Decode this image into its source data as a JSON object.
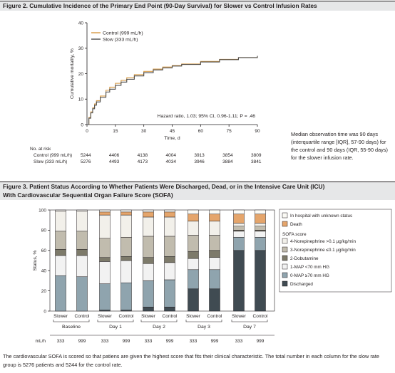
{
  "figure2": {
    "title": "Figure 2. Cumulative Incidence of the Primary End Point (90-Day Survival) for Slower vs Control Infusion Rates",
    "note": "Median observation time was 90 days (interquartile range [IQR], 57-90 days) for the control and 90 days (IQR, 55-90 days) for the slower infusion rate."
  },
  "figure3": {
    "title_line1": "Figure 3. Patient Status According to Whether Patients Were Discharged, Dead, or in the Intensive Care Unit (ICU)",
    "title_line2": "With Cardiovascular Sequential Organ Failure Score (SOFA)",
    "note": "The cardiovascular SOFA is scored so that patiens are given the highest score that fits their clinical characteristic. The total number in each column for the slow rate group is 5276 patients and 5244 for the control rate."
  },
  "risk_table": {
    "title": "No. at risk",
    "rows": [
      {
        "label": "Control (999 mL/h)",
        "values": [
          "5244",
          "4406",
          "4138",
          "4004",
          "3913",
          "3854",
          "3809"
        ]
      },
      {
        "label": "Slow (333 mL/h)",
        "values": [
          "5276",
          "4493",
          "4173",
          "4034",
          "3946",
          "3884",
          "3841"
        ]
      }
    ]
  },
  "colors": {
    "control": "#d79a45",
    "slow": "#4d4d4d",
    "header_bg": "#e6e7e8",
    "discharged": "#404b52",
    "map_ge70": "#8fa4ae",
    "map_lt70": "#f2f2f2",
    "dobutamine": "#7d7a6a",
    "ne_low": "#c1bcae",
    "ne_high": "#f2f0ea",
    "death": "#e5a56b",
    "unknown": "#fbfaf5"
  },
  "chart_data": [
    {
      "type": "line",
      "ylabel": "Cumulative mortality, %",
      "xlabel": "Time, d",
      "xlim": [
        0,
        90
      ],
      "ylim": [
        0,
        40
      ],
      "xticks": [
        "0",
        "15",
        "30",
        "45",
        "60",
        "75",
        "90"
      ],
      "yticks": [
        "0",
        "10",
        "20",
        "30",
        "40"
      ],
      "legend": [
        "Control (999 mL/h)",
        "Slow (333 mL/h)"
      ],
      "legend_position": "top-left",
      "annotation": "Hazard ratio, 1.03; 95% CI, 0.96-1.11; P = .46",
      "series": [
        {
          "name": "Control (999 mL/h)",
          "x": [
            0,
            1,
            2,
            3,
            4,
            5,
            7,
            10,
            12,
            15,
            18,
            21,
            25,
            30,
            35,
            40,
            45,
            50,
            60,
            70,
            80,
            90
          ],
          "y": [
            0,
            2.8,
            5.0,
            6.6,
            8.1,
            9.4,
            11.2,
            13.5,
            14.7,
            16.2,
            17.4,
            18.4,
            19.6,
            20.9,
            21.8,
            22.6,
            23.2,
            23.8,
            24.8,
            25.6,
            26.3,
            26.9
          ]
        },
        {
          "name": "Slow (333 mL/h)",
          "x": [
            0,
            1,
            2,
            3,
            4,
            5,
            7,
            10,
            12,
            15,
            18,
            21,
            25,
            30,
            35,
            40,
            45,
            50,
            60,
            70,
            80,
            90
          ],
          "y": [
            0,
            2.5,
            4.6,
            6.2,
            7.6,
            8.9,
            10.7,
            12.8,
            13.9,
            15.4,
            16.7,
            17.8,
            19.1,
            20.4,
            21.5,
            22.3,
            23.0,
            23.6,
            24.6,
            25.5,
            26.3,
            27.0
          ]
        }
      ]
    },
    {
      "type": "bar",
      "stacked": true,
      "ylabel": "Status, %",
      "ylim": [
        0,
        100
      ],
      "yticks": [
        "0",
        "20",
        "40",
        "60",
        "80",
        "100"
      ],
      "groups": [
        "Baseline",
        "Day 1",
        "Day 2",
        "Day 3",
        "Day 7"
      ],
      "bars": [
        "Slower",
        "Control"
      ],
      "n_label": "mL/h",
      "n_values": [
        "333",
        "999"
      ],
      "legend_position": "right",
      "legend": {
        "top_items": [
          "In hospital with unknown status",
          "Death"
        ],
        "sofa_title": "SOFA score",
        "sofa_items": [
          "4-Norepinephrine >0.1 µg/kg/min",
          "3-Norepinephrine ≤0.1 µg/kg/min",
          "2-Dobutamine",
          "1-MAP <70 mm HG",
          "0-MAP ≥70 mm HG",
          "Discharged"
        ]
      },
      "stack_order": [
        "Discharged",
        "0-MAP ≥70 mm HG",
        "1-MAP <70 mm HG",
        "2-Dobutamine",
        "3-Norepinephrine ≤0.1 µg/kg/min",
        "4-Norepinephrine >0.1 µg/kg/min",
        "Death",
        "In hospital with unknown status"
      ],
      "values": {
        "Baseline-Slower": [
          0,
          35,
          20,
          6,
          18,
          20,
          0,
          1
        ],
        "Baseline-Control": [
          0,
          34,
          21,
          6,
          18,
          20,
          0,
          1
        ],
        "Day 1-Slower": [
          1,
          26,
          22,
          4,
          19,
          23,
          3,
          2
        ],
        "Day 1-Control": [
          1,
          27,
          22,
          4,
          19,
          22,
          3,
          2
        ],
        "Day 2-Slower": [
          4,
          26,
          17,
          6,
          21,
          19,
          5,
          2
        ],
        "Day 2-Control": [
          4,
          27,
          17,
          6,
          20,
          19,
          5,
          2
        ],
        "Day 3-Slower": [
          22,
          19,
          11,
          7,
          16,
          14,
          7,
          4
        ],
        "Day 3-Control": [
          22,
          19,
          12,
          7,
          15,
          14,
          7,
          4
        ],
        "Day 7-Slower": [
          60,
          13,
          6,
          1,
          4,
          3,
          9,
          4
        ],
        "Day 7-Control": [
          60,
          13,
          6,
          1,
          4,
          3,
          9,
          4
        ]
      }
    }
  ]
}
